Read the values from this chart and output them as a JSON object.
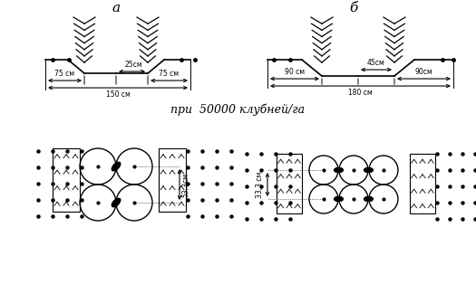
{
  "title_a": "а",
  "title_b": "б",
  "label_center_text": "при  50000 клубней/га",
  "dim_a": {
    "left": "75 см",
    "right": "75 см",
    "inner": "25см",
    "total": "150 см"
  },
  "dim_b": {
    "left": "90 см",
    "right": "90см",
    "inner": "45см",
    "total": "180 см"
  },
  "dim_bottom_a": "53,3см",
  "dim_bottom_b": "33,3 см",
  "bg_color": "#ffffff",
  "line_color": "#000000"
}
